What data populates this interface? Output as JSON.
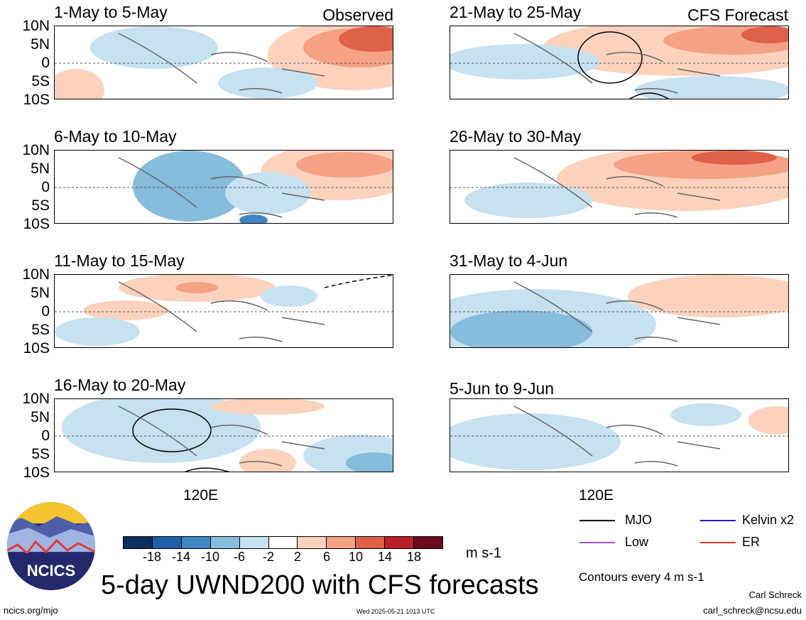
{
  "figure_title": "5-day UWND200 with CFS forecasts",
  "labels": {
    "observed": "Observed",
    "forecast": "CFS Forecast",
    "lon_tick": "120E"
  },
  "lat_ticks": [
    "10N",
    "5N",
    "0",
    "5S",
    "10S"
  ],
  "panels": [
    {
      "title": "1-May to 5-May",
      "group": "observed"
    },
    {
      "title": "6-May to 10-May",
      "group": "observed"
    },
    {
      "title": "11-May to 15-May",
      "group": "observed"
    },
    {
      "title": "16-May to 20-May",
      "group": "observed"
    },
    {
      "title": "21-May to 25-May",
      "group": "forecast"
    },
    {
      "title": "26-May to 30-May",
      "group": "forecast"
    },
    {
      "title": "31-May to 4-Jun",
      "group": "forecast"
    },
    {
      "title": "5-Jun to 9-Jun",
      "group": "forecast"
    }
  ],
  "colorbar": {
    "ticks": [
      "-18",
      "-14",
      "-10",
      "-6",
      "-2",
      "2",
      "6",
      "10",
      "14",
      "18"
    ],
    "colors": [
      "#0b2f5c",
      "#1f5fa8",
      "#3f86c4",
      "#86bcdc",
      "#c6e1ef",
      "#ffffff",
      "#fcd2bd",
      "#f4a283",
      "#de6148",
      "#b7202a",
      "#6a0a1d"
    ],
    "units": "m s-1"
  },
  "legend": [
    {
      "label": "MJO",
      "color": "#000000"
    },
    {
      "label": "Kelvin x2",
      "color": "#1a1acc"
    },
    {
      "label": "Low",
      "color": "#a24fd6"
    },
    {
      "label": "ER",
      "color": "#d63a2a"
    }
  ],
  "contours_note": "Contours every 4 m s-1",
  "logo_text": "NCICS",
  "footer": {
    "left": "ncics.org/mjo",
    "center": "Wed 2025-05-21 1013 UTC",
    "right_name": "Carl Schreck",
    "right_email": "carl_schreck@ncsu.edu"
  }
}
